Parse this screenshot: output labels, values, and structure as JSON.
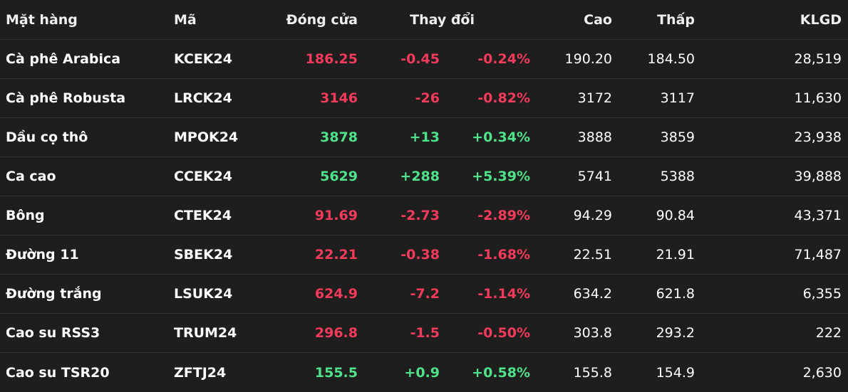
{
  "colors": {
    "background": "#1e1e1e",
    "down": "#f23a5a",
    "up": "#4ee38a",
    "text": "#ffffff"
  },
  "header": {
    "name": "Mặt hàng",
    "code": "Mã",
    "close": "Đóng cửa",
    "change": "Thay đổi",
    "high": "Cao",
    "low": "Thấp",
    "volume": "KLGD"
  },
  "rows": [
    {
      "name": "Cà phê Arabica",
      "code": "KCEK24",
      "close": "186.25",
      "change": "-0.45",
      "pct": "-0.24%",
      "high": "190.20",
      "low": "184.50",
      "volume": "28,519",
      "direction": "down"
    },
    {
      "name": "Cà phê Robusta",
      "code": "LRCK24",
      "close": "3146",
      "change": "-26",
      "pct": "-0.82%",
      "high": "3172",
      "low": "3117",
      "volume": "11,630",
      "direction": "down"
    },
    {
      "name": "Dầu cọ thô",
      "code": "MPOK24",
      "close": "3878",
      "change": "+13",
      "pct": "+0.34%",
      "high": "3888",
      "low": "3859",
      "volume": "23,938",
      "direction": "up"
    },
    {
      "name": "Ca cao",
      "code": "CCEK24",
      "close": "5629",
      "change": "+288",
      "pct": "+5.39%",
      "high": "5741",
      "low": "5388",
      "volume": "39,888",
      "direction": "up"
    },
    {
      "name": "Bông",
      "code": "CTEK24",
      "close": "91.69",
      "change": "-2.73",
      "pct": "-2.89%",
      "high": "94.29",
      "low": "90.84",
      "volume": "43,371",
      "direction": "down"
    },
    {
      "name": "Đường 11",
      "code": "SBEK24",
      "close": "22.21",
      "change": "-0.38",
      "pct": "-1.68%",
      "high": "22.51",
      "low": "21.91",
      "volume": "71,487",
      "direction": "down"
    },
    {
      "name": "Đường trắng",
      "code": "LSUK24",
      "close": "624.9",
      "change": "-7.2",
      "pct": "-1.14%",
      "high": "634.2",
      "low": "621.8",
      "volume": "6,355",
      "direction": "down"
    },
    {
      "name": "Cao su RSS3",
      "code": "TRUM24",
      "close": "296.8",
      "change": "-1.5",
      "pct": "-0.50%",
      "high": "303.8",
      "low": "293.2",
      "volume": "222",
      "direction": "down"
    },
    {
      "name": "Cao su TSR20",
      "code": "ZFTJ24",
      "close": "155.5",
      "change": "+0.9",
      "pct": "+0.58%",
      "high": "155.8",
      "low": "154.9",
      "volume": "2,630",
      "direction": "up"
    }
  ]
}
